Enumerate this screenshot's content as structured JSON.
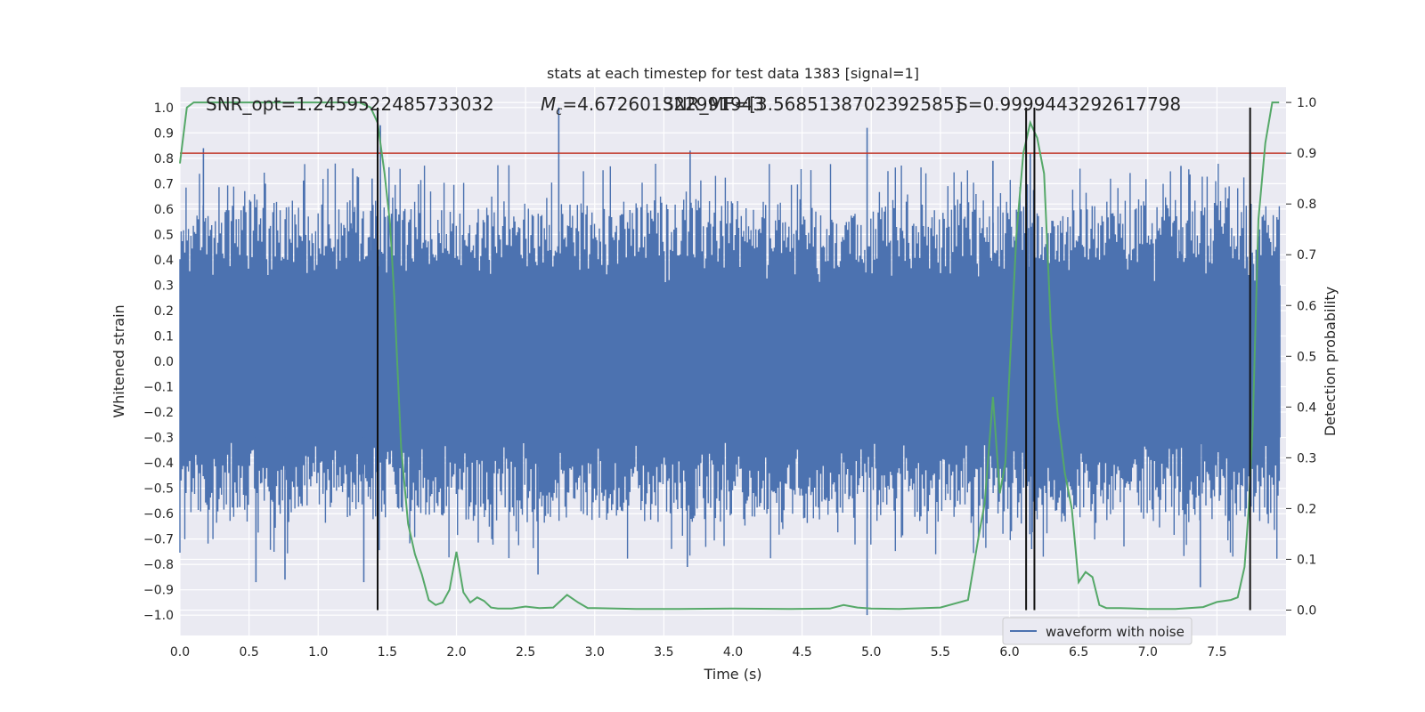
{
  "chart_data": {
    "type": "line",
    "title": "stats at each timestep for test data 1383 [signal=1]",
    "xlabel": "Time (s)",
    "ylabel_left": "Whitened strain",
    "ylabel_right": "Detection probability",
    "xlim": [
      0.0,
      8.0
    ],
    "ylim_left": [
      -1.08,
      1.08
    ],
    "ylim_right": [
      -0.05,
      1.03
    ],
    "x_ticks": [
      "0.0",
      "0.5",
      "1.0",
      "1.5",
      "2.0",
      "2.5",
      "3.0",
      "3.5",
      "4.0",
      "4.5",
      "5.0",
      "5.5",
      "6.0",
      "6.5",
      "7.0",
      "7.5"
    ],
    "x_tick_values": [
      0.0,
      0.5,
      1.0,
      1.5,
      2.0,
      2.5,
      3.0,
      3.5,
      4.0,
      4.5,
      5.0,
      5.5,
      6.0,
      6.5,
      7.0,
      7.5
    ],
    "y_left_ticks": [
      "1.0",
      "0.9",
      "0.8",
      "0.7",
      "0.6",
      "0.5",
      "0.4",
      "0.3",
      "0.2",
      "0.1",
      "0.0",
      "−0.1",
      "−0.2",
      "−0.3",
      "−0.4",
      "−0.5",
      "−0.6",
      "−0.7",
      "−0.8",
      "−0.9",
      "−1.0"
    ],
    "y_left_tick_values": [
      1.0,
      0.9,
      0.8,
      0.7,
      0.6,
      0.5,
      0.4,
      0.3,
      0.2,
      0.1,
      0.0,
      -0.1,
      -0.2,
      -0.3,
      -0.4,
      -0.5,
      -0.6,
      -0.7,
      -0.8,
      -0.9,
      -1.0
    ],
    "y_right_ticks": [
      "1.0",
      "0.9",
      "0.8",
      "0.7",
      "0.6",
      "0.5",
      "0.4",
      "0.3",
      "0.2",
      "0.1",
      "0.0"
    ],
    "y_right_tick_values": [
      1.0,
      0.9,
      0.8,
      0.7,
      0.6,
      0.5,
      0.4,
      0.3,
      0.2,
      0.1,
      0.0
    ],
    "annotations": {
      "snr_opt": "SNR_opt=1.2459522485733032",
      "mc_prefix": "M",
      "mc_sub": "c",
      "mc_value": "=4.672601322991943",
      "snr_mf": "SNR_MF=[3.5685138702392585]",
      "s_value": "S=0.9999443292617798"
    },
    "legend": {
      "label": "waveform with noise",
      "placement": "lower-right"
    },
    "grid": true,
    "threshold": {
      "value": 0.9,
      "axis": "right",
      "color": "#c0392b"
    },
    "vertical_lines": [
      1.43,
      6.12,
      6.18,
      7.74
    ],
    "series": [
      {
        "name": "waveform with noise",
        "axis": "left",
        "color": "#4c72b0",
        "envelope_baseline": 0.4,
        "spikes": [
          {
            "x": 0.17,
            "y": 0.84
          },
          {
            "x": 1.25,
            "y": 0.76
          },
          {
            "x": 1.39,
            "y": 0.72
          },
          {
            "x": 1.45,
            "y": 0.93
          },
          {
            "x": 2.74,
            "y": 1.0
          },
          {
            "x": 3.69,
            "y": 0.83
          },
          {
            "x": 4.97,
            "y": 0.92
          },
          {
            "x": 5.88,
            "y": 0.79
          },
          {
            "x": 6.15,
            "y": 0.82
          },
          {
            "x": 7.24,
            "y": 0.77
          },
          {
            "x": 0.55,
            "y": -0.87
          },
          {
            "x": 0.76,
            "y": -0.86
          },
          {
            "x": 1.33,
            "y": -0.87
          },
          {
            "x": 2.59,
            "y": -0.84
          },
          {
            "x": 3.67,
            "y": -0.81
          },
          {
            "x": 4.97,
            "y": -1.0
          },
          {
            "x": 6.16,
            "y": -0.74
          },
          {
            "x": 7.38,
            "y": -0.89
          }
        ]
      },
      {
        "name": "detection probability",
        "axis": "right",
        "color": "#55a868",
        "x": [
          0.0,
          0.05,
          0.1,
          0.3,
          0.5,
          0.8,
          1.1,
          1.3,
          1.38,
          1.43,
          1.48,
          1.52,
          1.55,
          1.6,
          1.65,
          1.7,
          1.75,
          1.8,
          1.85,
          1.9,
          1.95,
          2.0,
          2.05,
          2.1,
          2.15,
          2.2,
          2.25,
          2.3,
          2.4,
          2.5,
          2.6,
          2.7,
          2.8,
          2.88,
          2.95,
          3.0,
          3.3,
          3.6,
          4.0,
          4.4,
          4.7,
          4.8,
          4.9,
          5.0,
          5.2,
          5.5,
          5.7,
          5.78,
          5.82,
          5.88,
          5.93,
          5.97,
          6.0,
          6.05,
          6.1,
          6.15,
          6.2,
          6.25,
          6.3,
          6.35,
          6.4,
          6.45,
          6.5,
          6.55,
          6.6,
          6.65,
          6.7,
          6.8,
          7.0,
          7.2,
          7.4,
          7.5,
          7.6,
          7.65,
          7.7,
          7.73,
          7.76,
          7.8,
          7.85,
          7.9,
          7.95
        ],
        "y": [
          0.88,
          0.99,
          1.0,
          1.0,
          1.0,
          1.0,
          1.0,
          1.0,
          0.99,
          0.96,
          0.86,
          0.76,
          0.62,
          0.32,
          0.17,
          0.11,
          0.07,
          0.02,
          0.01,
          0.015,
          0.04,
          0.115,
          0.035,
          0.015,
          0.025,
          0.018,
          0.005,
          0.003,
          0.003,
          0.007,
          0.004,
          0.005,
          0.03,
          0.015,
          0.004,
          0.004,
          0.002,
          0.002,
          0.003,
          0.002,
          0.003,
          0.01,
          0.005,
          0.003,
          0.002,
          0.005,
          0.02,
          0.15,
          0.21,
          0.42,
          0.23,
          0.29,
          0.47,
          0.74,
          0.9,
          0.96,
          0.93,
          0.86,
          0.55,
          0.38,
          0.27,
          0.2,
          0.055,
          0.075,
          0.065,
          0.01,
          0.004,
          0.004,
          0.002,
          0.002,
          0.006,
          0.016,
          0.02,
          0.025,
          0.085,
          0.2,
          0.37,
          0.77,
          0.92,
          1.0,
          1.0
        ]
      }
    ]
  }
}
